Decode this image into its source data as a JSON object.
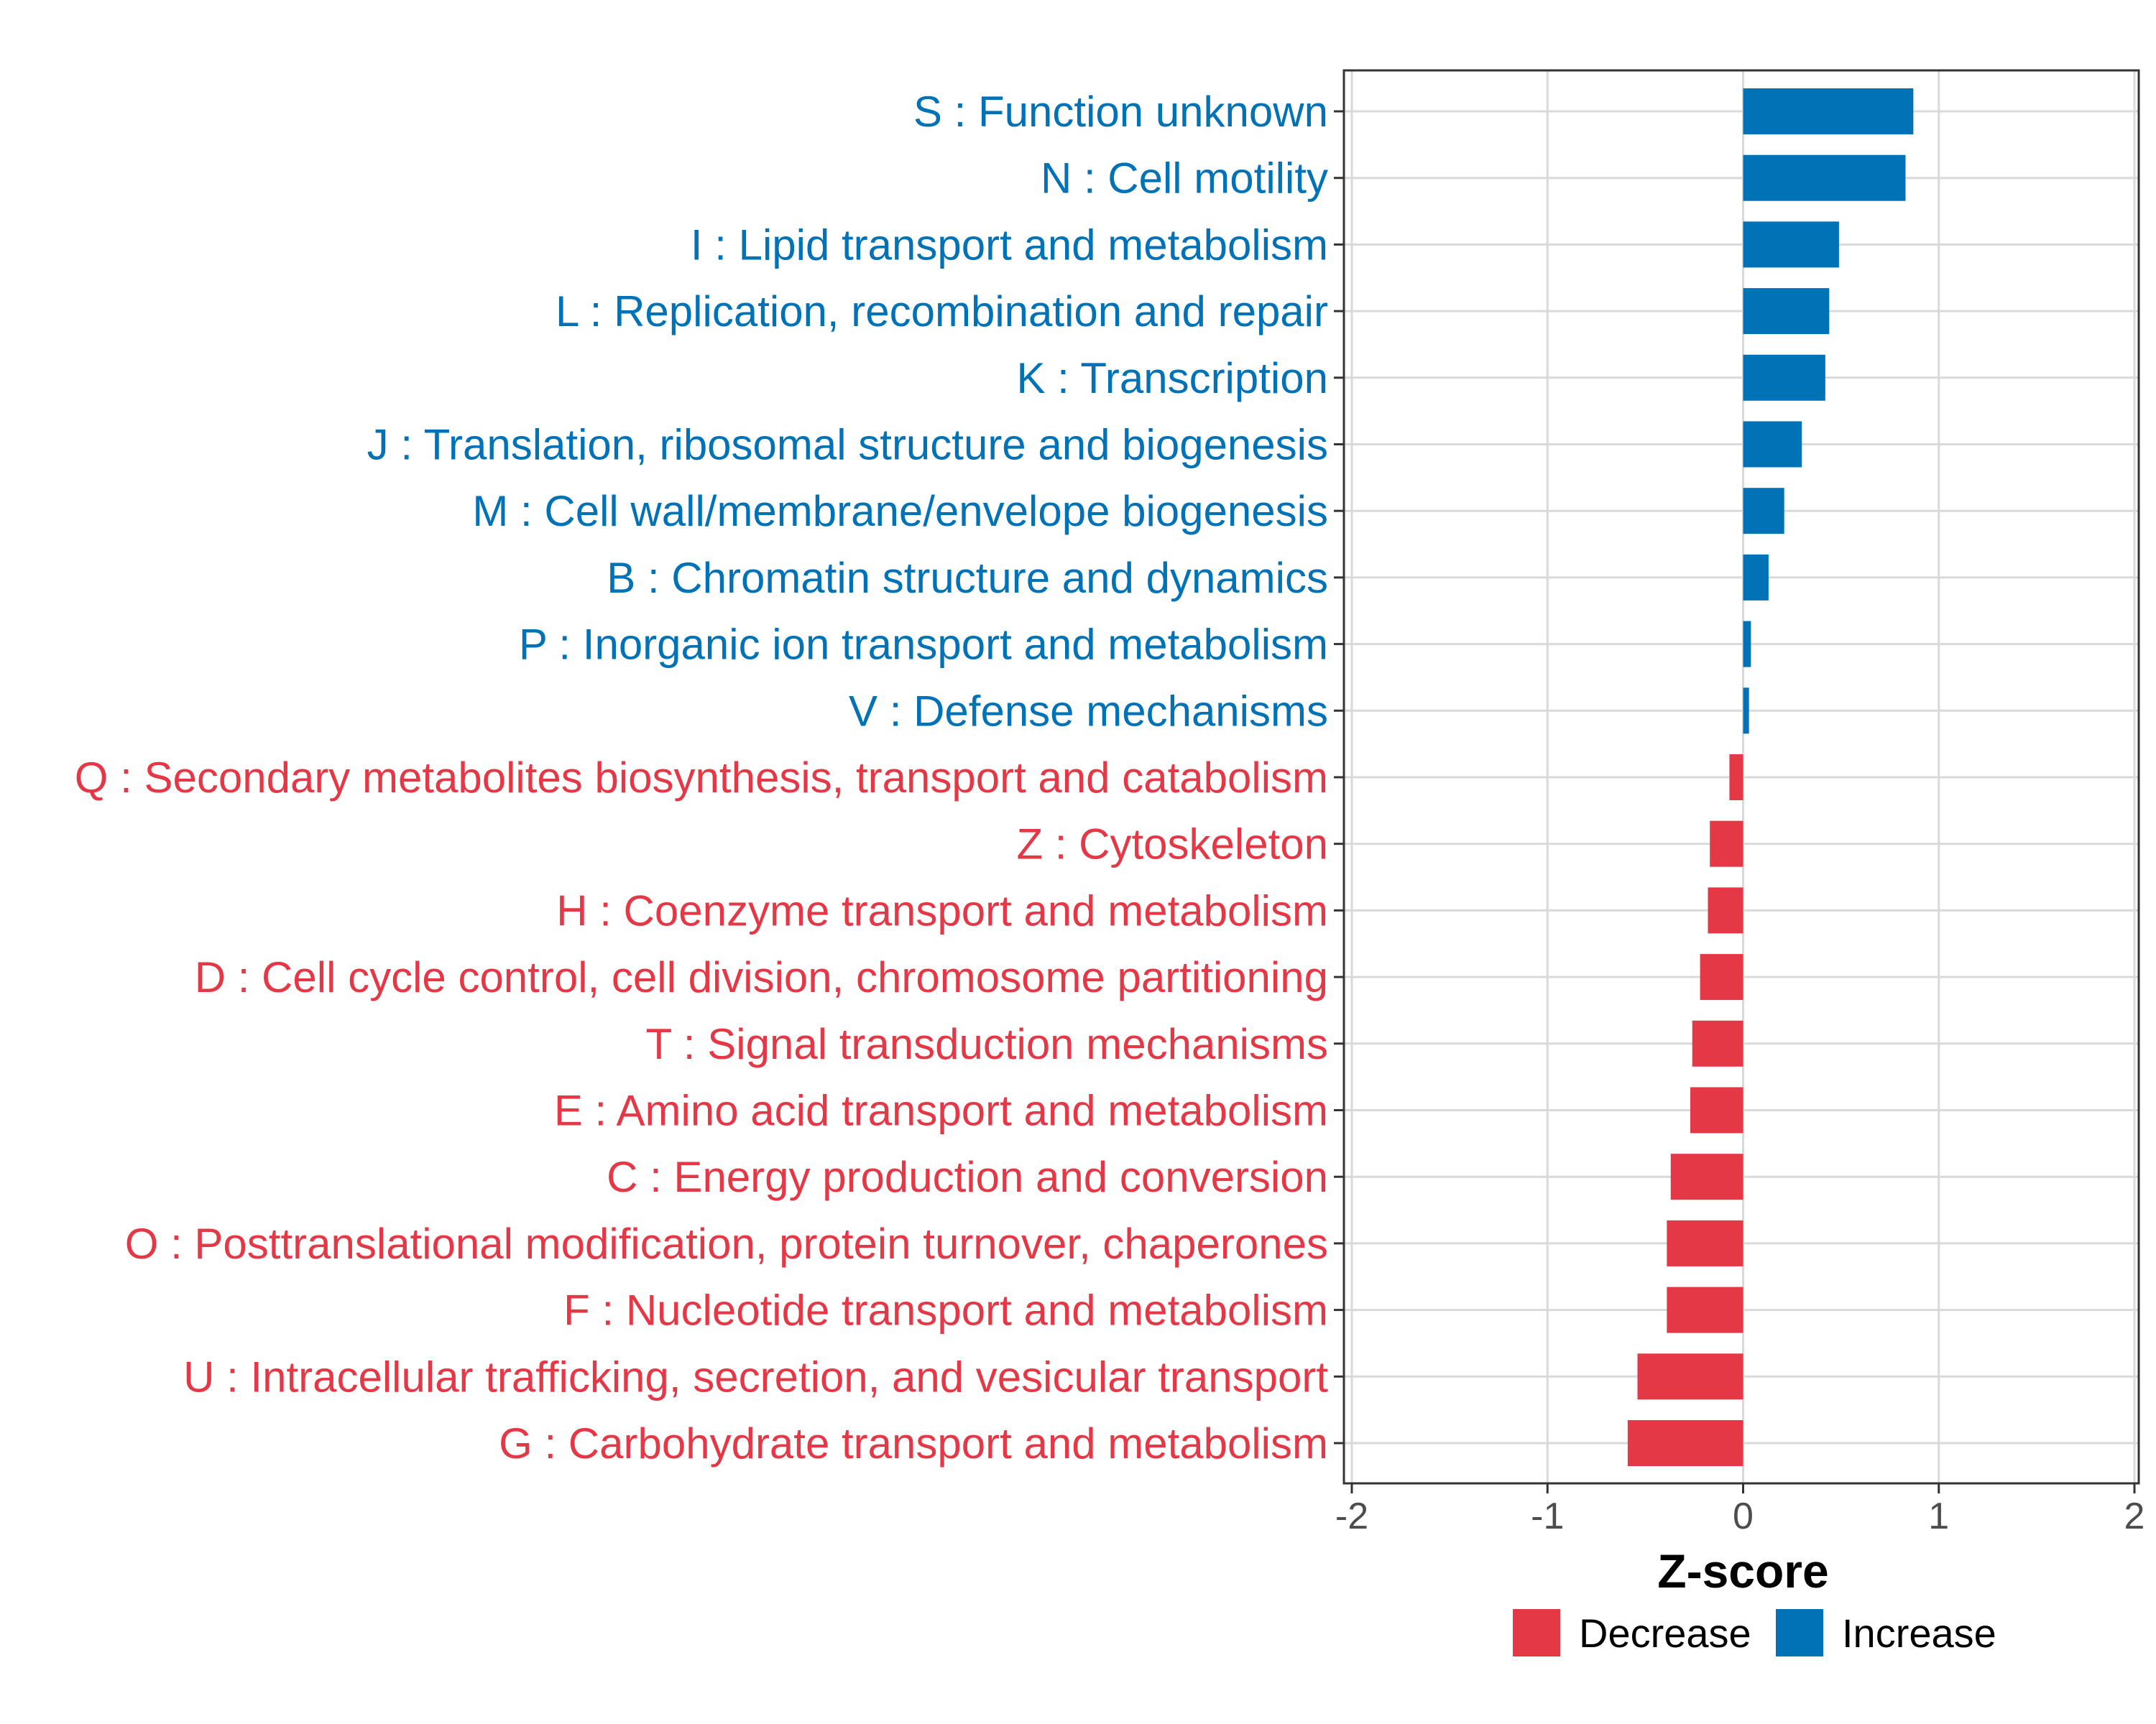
{
  "chart_data": {
    "type": "bar",
    "orientation": "horizontal",
    "xlabel": "Z-score",
    "ylabel": "",
    "xlim": [
      -2,
      2
    ],
    "xticks": [
      -2,
      -1,
      0,
      1,
      2
    ],
    "grid": true,
    "colors": {
      "Increase": "#0072b5",
      "Decrease": "#e43847"
    },
    "categories": [
      "S : Function unknown",
      "N : Cell motility",
      "I : Lipid transport and metabolism",
      "L : Replication, recombination and repair",
      "K : Transcription",
      "J : Translation, ribosomal structure and biogenesis",
      "M : Cell wall/membrane/envelope biogenesis",
      "B : Chromatin structure and dynamics",
      "P : Inorganic ion transport and metabolism",
      "V : Defense mechanisms",
      "Q : Secondary metabolites biosynthesis, transport and catabolism",
      "Z : Cytoskeleton",
      "H : Coenzyme transport and metabolism",
      "D : Cell cycle control, cell division, chromosome partitioning",
      "T : Signal transduction mechanisms",
      "E : Amino acid transport and metabolism",
      "C : Energy production and conversion",
      "O : Posttranslational modification, protein turnover, chaperones",
      "F : Nucleotide transport and metabolism",
      "U : Intracellular trafficking, secretion, and vesicular transport",
      "G : Carbohydrate transport and metabolism"
    ],
    "values": [
      0.87,
      0.83,
      0.49,
      0.44,
      0.42,
      0.3,
      0.21,
      0.13,
      0.04,
      0.03,
      -0.07,
      -0.17,
      -0.18,
      -0.22,
      -0.26,
      -0.27,
      -0.37,
      -0.39,
      -0.39,
      -0.54,
      -0.59
    ],
    "groups": [
      "Increase",
      "Increase",
      "Increase",
      "Increase",
      "Increase",
      "Increase",
      "Increase",
      "Increase",
      "Increase",
      "Increase",
      "Decrease",
      "Decrease",
      "Decrease",
      "Decrease",
      "Decrease",
      "Decrease",
      "Decrease",
      "Decrease",
      "Decrease",
      "Decrease",
      "Decrease"
    ],
    "legend": {
      "position": "bottom",
      "items": [
        {
          "label": "Decrease",
          "color": "#e43847"
        },
        {
          "label": "Increase",
          "color": "#0072b5"
        }
      ]
    }
  }
}
